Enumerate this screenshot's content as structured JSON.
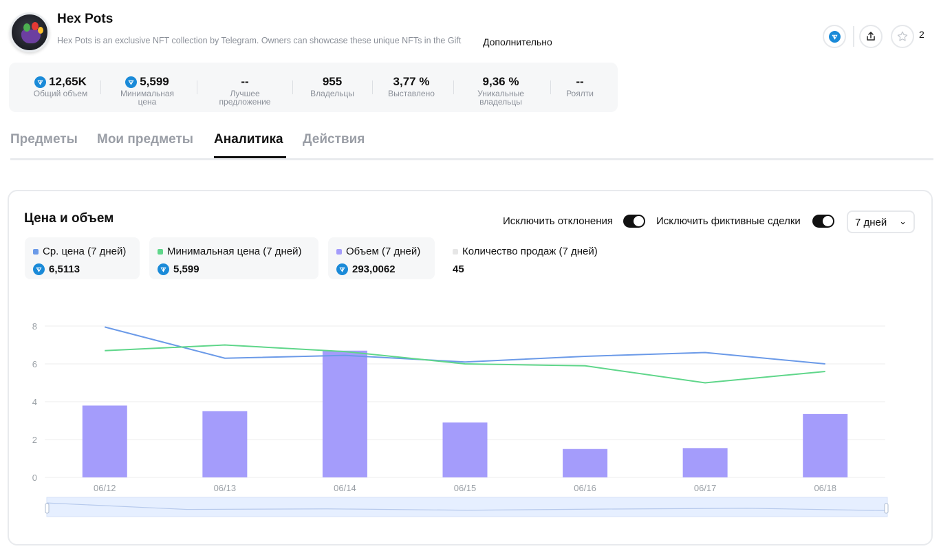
{
  "collection": {
    "name": "Hex Pots",
    "description": "Hex Pots is an exclusive NFT collection by Telegram. Owners can showcase these unique NFTs in the Gift",
    "more_label": "Дополнительно",
    "favorite_count": "2"
  },
  "stats": [
    {
      "value": "12,65K",
      "label": "Общий объем",
      "ton": true
    },
    {
      "value": "5,599",
      "label": "Минимальная\nцена",
      "ton": true
    },
    {
      "value": "--",
      "label": "Лучшее\nпредложение",
      "ton": false
    },
    {
      "value": "955",
      "label": "Владельцы",
      "ton": false
    },
    {
      "value": "3,77 %",
      "label": "Выставлено",
      "ton": false
    },
    {
      "value": "9,36 %",
      "label": "Уникальные\nвладельцы",
      "ton": false
    },
    {
      "value": "--",
      "label": "Роялти",
      "ton": false
    }
  ],
  "tabs": [
    {
      "label": "Предметы",
      "active": false
    },
    {
      "label": "Мои предметы",
      "active": false
    },
    {
      "label": "Аналитика",
      "active": true
    },
    {
      "label": "Действия",
      "active": false
    }
  ],
  "analytics": {
    "title": "Цена и объем",
    "exclude_outliers_label": "Исключить отклонения",
    "exclude_wash_label": "Исключить фиктивные сделки",
    "period_value": "7 дней",
    "legend": [
      {
        "label": "Ср. цена (7 дней)",
        "value": "6,5113",
        "color": "#6b9ae8",
        "ton": true
      },
      {
        "label": "Минимальная цена (7 дней)",
        "value": "5,599",
        "color": "#5fd68a",
        "ton": true
      },
      {
        "label": "Объем (7 дней)",
        "value": "293,0062",
        "color": "#a49cfb",
        "ton": true
      },
      {
        "label": "Количество продаж (7 дней)",
        "value": "45",
        "color": "#e6e6e6",
        "ton": false
      }
    ]
  },
  "chart_data": {
    "type": "bar",
    "categories": [
      "06/12",
      "06/13",
      "06/14",
      "06/15",
      "06/16",
      "06/17",
      "06/18"
    ],
    "ylim": [
      0,
      8
    ],
    "yticks": [
      "0",
      "2",
      "4",
      "6",
      "8"
    ],
    "grid": true,
    "series": [
      {
        "name": "Объем (7 дней)",
        "type": "bar",
        "color": "#a49cfb",
        "values": [
          3.8,
          3.5,
          6.7,
          2.9,
          1.5,
          1.55,
          3.35
        ]
      },
      {
        "name": "Ср. цена (7 дней)",
        "type": "line",
        "color": "#6b9ae8",
        "values": [
          7.95,
          6.3,
          6.45,
          6.1,
          6.4,
          6.6,
          6.0
        ]
      },
      {
        "name": "Минимальная цена (7 дней)",
        "type": "line",
        "color": "#5fd68a",
        "values": [
          6.7,
          7.0,
          6.65,
          6.0,
          5.9,
          5.0,
          5.6
        ]
      }
    ]
  }
}
